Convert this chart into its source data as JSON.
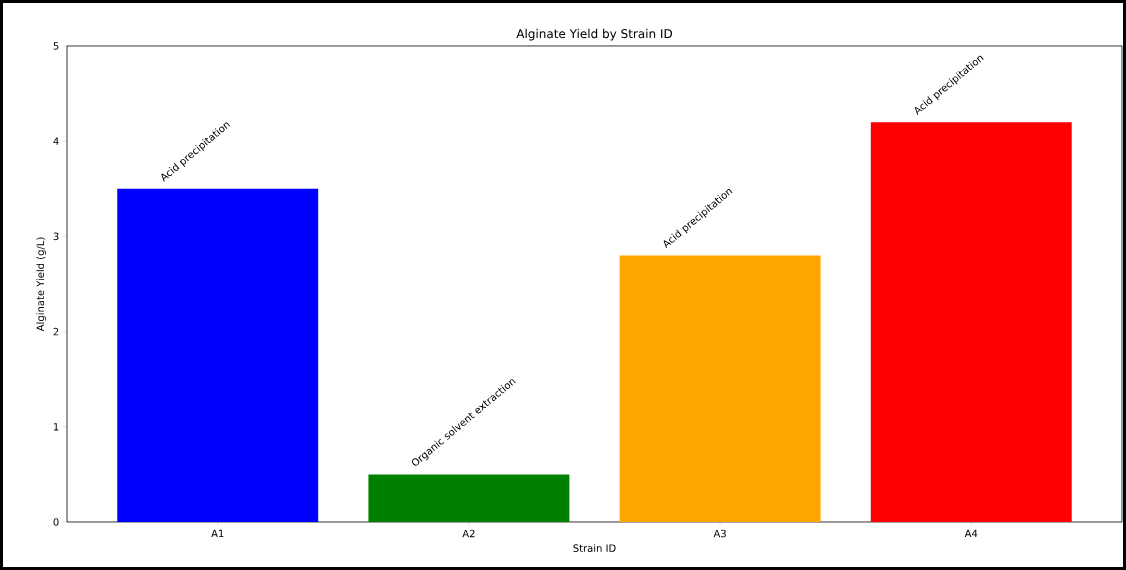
{
  "chart_data": {
    "type": "bar",
    "title": "Alginate Yield by Strain ID",
    "xlabel": "Strain ID",
    "ylabel": "Alginate Yield (g/L)",
    "categories": [
      "A1",
      "A2",
      "A3",
      "A4"
    ],
    "values": [
      3.5,
      0.5,
      2.8,
      4.2
    ],
    "colors": [
      "#0000ff",
      "#008000",
      "#ffa500",
      "#ff0000"
    ],
    "ylim": [
      0,
      5
    ],
    "yticks": [
      0,
      1,
      2,
      3,
      4,
      5
    ],
    "annotations": [
      {
        "text": "Acid precipitation",
        "x": "A1",
        "y": 3.5
      },
      {
        "text": "Organic solvent extraction",
        "x": "A2",
        "y": 0.5
      },
      {
        "text": "Acid precipitation",
        "x": "A3",
        "y": 2.8
      },
      {
        "text": "Acid precipitation",
        "x": "A4",
        "y": 4.2
      }
    ]
  }
}
